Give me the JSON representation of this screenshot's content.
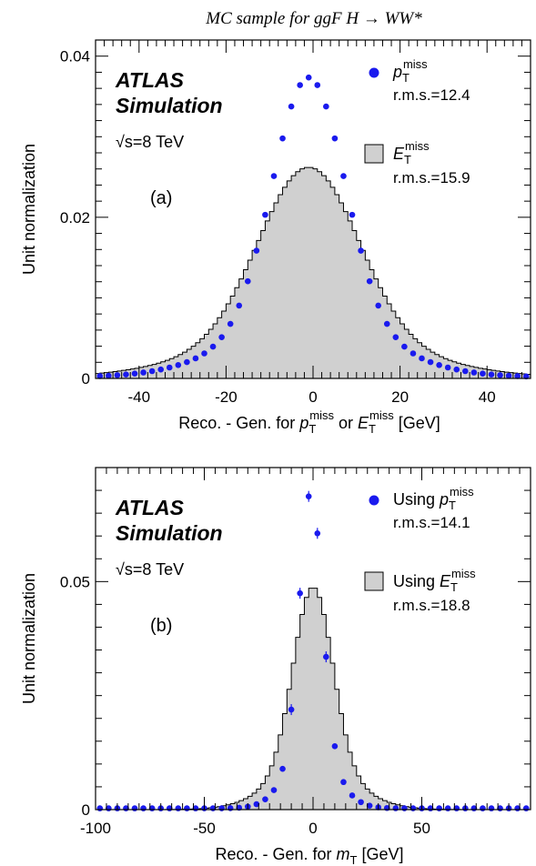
{
  "figure_title": "MC sample for ggF H → WW*",
  "chart_data": [
    {
      "type": "histogram",
      "panel_label": "(a)",
      "atlas_label": "ATLAS",
      "atlas_sublabel": "Simulation",
      "energy_label": "√s=8 TeV",
      "xlabel": "Reco. - Gen. for p_T^miss or E_T^miss [GeV]",
      "xlabel_parts": {
        "prefix": "Reco. - Gen. for ",
        "v1": "p",
        "mid": " or ",
        "v2": "E",
        "sub": "T",
        "sup": "miss",
        "suffix": " [GeV]"
      },
      "ylabel": "Unit normalization",
      "xlim": [
        -50,
        50
      ],
      "ylim": [
        0,
        0.042
      ],
      "xticks": [
        -40,
        -20,
        0,
        20,
        40
      ],
      "xtick_labels": [
        "-40",
        "-20",
        "0",
        "20",
        "40"
      ],
      "yticks": [
        0,
        0.02,
        0.04
      ],
      "ytick_labels": [
        "0",
        "0.02",
        "0.04"
      ],
      "legend_position": "top-right",
      "legend": [
        {
          "kind": "points",
          "symbol": "p",
          "sub": "T",
          "sup": "miss",
          "rms": "r.m.s.=12.4",
          "color": "#1a1aee"
        },
        {
          "kind": "filled",
          "symbol": "E",
          "sub": "T",
          "sup": "miss",
          "rms": "r.m.s.=15.9",
          "color": "#d0d0d0"
        }
      ],
      "series": [
        {
          "name": "p_T^miss",
          "kind": "points",
          "color": "#1a1aee",
          "peak_x": -1.0,
          "peak_y": 0.0372,
          "sigma": 8.2
        },
        {
          "name": "E_T^miss",
          "kind": "filled_histogram",
          "color": "#d0d0d0",
          "peak_x": -1.0,
          "peak_y": 0.0262,
          "sigma": 11.4,
          "bin_width": 1.0
        }
      ]
    },
    {
      "type": "histogram",
      "panel_label": "(b)",
      "atlas_label": "ATLAS",
      "atlas_sublabel": "Simulation",
      "energy_label": "√s=8 TeV",
      "xlabel": "Reco. - Gen. for m_T [GeV]",
      "xlabel_parts": {
        "prefix": "Reco. - Gen. for ",
        "v1": "m",
        "sub": "T",
        "suffix": " [GeV]"
      },
      "ylabel": "Unit normalization",
      "xlim": [
        -100,
        100
      ],
      "ylim": [
        0,
        0.075
      ],
      "xticks": [
        -100,
        -50,
        0,
        50
      ],
      "xtick_labels": [
        "-100",
        "-50",
        "0",
        "50"
      ],
      "yticks": [
        0,
        0.05
      ],
      "ytick_labels": [
        "0",
        "0.05"
      ],
      "legend_position": "top-right",
      "legend": [
        {
          "kind": "points",
          "prefix": "Using ",
          "symbol": "p",
          "sub": "T",
          "sup": "miss",
          "rms": "r.m.s.=14.1",
          "color": "#1a1aee"
        },
        {
          "kind": "filled",
          "prefix": "Using ",
          "symbol": "E",
          "sub": "T",
          "sup": "miss",
          "rms": "r.m.s.=18.8",
          "color": "#d0d0d0"
        }
      ],
      "series": [
        {
          "name": "Using p_T^miss",
          "kind": "points",
          "color": "#1a1aee",
          "peak_x": -1.0,
          "peak_y": 0.0695,
          "sigma": 5.2,
          "bin_width": 4.0
        },
        {
          "name": "Using E_T^miss",
          "kind": "filled_histogram",
          "color": "#d0d0d0",
          "peak_x": 0.0,
          "peak_y": 0.0488,
          "sigma": 9.0,
          "bin_width": 2.0
        }
      ]
    }
  ]
}
